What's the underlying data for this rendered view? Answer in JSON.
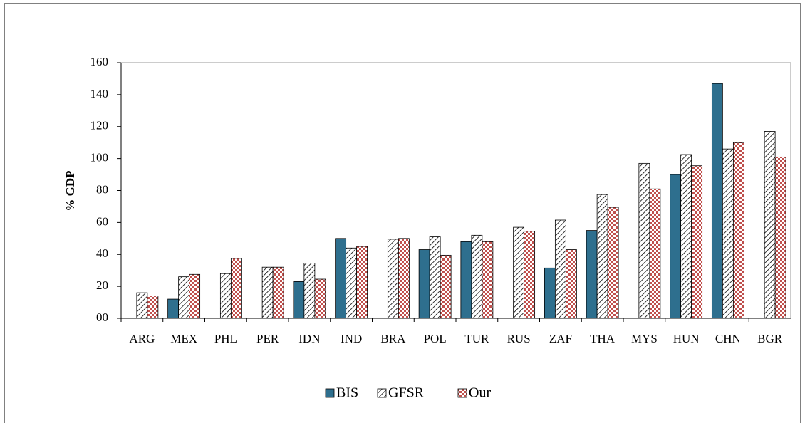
{
  "chart_data": {
    "type": "bar",
    "y_label": "% GDP",
    "categories": [
      "ARG",
      "MEX",
      "PHL",
      "PER",
      "IDN",
      "IND",
      "BRA",
      "POL",
      "TUR",
      "RUS",
      "ZAF",
      "THA",
      "MYS",
      "HUN",
      "CHN",
      "BGR"
    ],
    "series": [
      {
        "name": "BIS",
        "color": "#2e6f8e",
        "pattern": "solid",
        "values": [
          null,
          12,
          null,
          null,
          23,
          50,
          null,
          43,
          48,
          null,
          31.5,
          55,
          null,
          90,
          147,
          null
        ]
      },
      {
        "name": "GFSR",
        "color": "#000000",
        "pattern": "hatch",
        "values": [
          16,
          26,
          28,
          32,
          34.5,
          44,
          49.5,
          51,
          52,
          57,
          61.5,
          77.5,
          97,
          102.5,
          106,
          117
        ]
      },
      {
        "name": "Our",
        "color": "#c0504d",
        "pattern": "checker",
        "values": [
          14,
          27.5,
          37.5,
          32,
          24.5,
          45,
          50,
          39.5,
          48,
          54.5,
          43,
          69.5,
          81,
          95.5,
          110,
          101
        ]
      }
    ],
    "ylim": [
      0,
      160
    ],
    "yticks": [
      {
        "value": 0,
        "label": "00"
      },
      20,
      40,
      60,
      80,
      100,
      120,
      140,
      160
    ]
  }
}
